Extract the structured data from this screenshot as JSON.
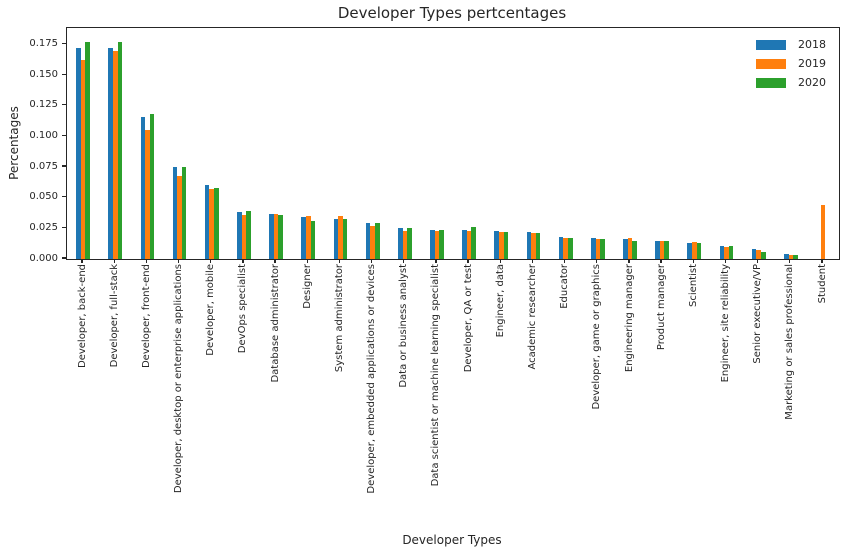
{
  "title": "Developer Types pertcentages",
  "chart_data": {
    "type": "bar",
    "title": "Developer Types pertcentages",
    "xlabel": "Developer Types",
    "ylabel": "Percentages",
    "ylim": [
      0,
      0.1885
    ],
    "yticks": [
      0.0,
      0.025,
      0.05,
      0.075,
      0.1,
      0.125,
      0.15,
      0.175
    ],
    "grid": false,
    "legend_position": "upper right",
    "categories": [
      "Developer, back-end",
      "Developer, full-stack",
      "Developer, front-end",
      "Developer, desktop or enterprise applications",
      "Developer, mobile",
      "DevOps specialist",
      "Database administrator",
      "Designer",
      "System administrator",
      "Developer, embedded applications or devices",
      "Data or business analyst",
      "Data scientist or machine learning specialist",
      "Developer, QA or test",
      "Engineer, data",
      "Academic researcher",
      "Educator",
      "Developer, game or graphics",
      "Engineering manager",
      "Product manager",
      "Scientist",
      "Engineer, site reliability",
      "Senior executive/VP",
      "Marketing or sales professional",
      "Student"
    ],
    "series": [
      {
        "name": "2018",
        "color": "#1f77b4",
        "values": [
          0.172,
          0.172,
          0.116,
          0.075,
          0.06,
          0.038,
          0.037,
          0.034,
          0.033,
          0.029,
          0.025,
          0.024,
          0.024,
          0.023,
          0.022,
          0.018,
          0.017,
          0.016,
          0.015,
          0.013,
          0.011,
          0.008,
          0.004,
          0.0
        ]
      },
      {
        "name": "2019",
        "color": "#ff7f0e",
        "values": [
          0.162,
          0.17,
          0.105,
          0.068,
          0.057,
          0.036,
          0.037,
          0.035,
          0.035,
          0.027,
          0.023,
          0.023,
          0.023,
          0.022,
          0.021,
          0.017,
          0.016,
          0.017,
          0.015,
          0.014,
          0.01,
          0.007,
          0.003,
          0.044
        ]
      },
      {
        "name": "2020",
        "color": "#2ca02c",
        "values": [
          0.177,
          0.177,
          0.118,
          0.075,
          0.058,
          0.039,
          0.036,
          0.031,
          0.033,
          0.029,
          0.025,
          0.024,
          0.026,
          0.022,
          0.021,
          0.017,
          0.016,
          0.015,
          0.015,
          0.013,
          0.011,
          0.006,
          0.003,
          0.0
        ]
      }
    ]
  }
}
